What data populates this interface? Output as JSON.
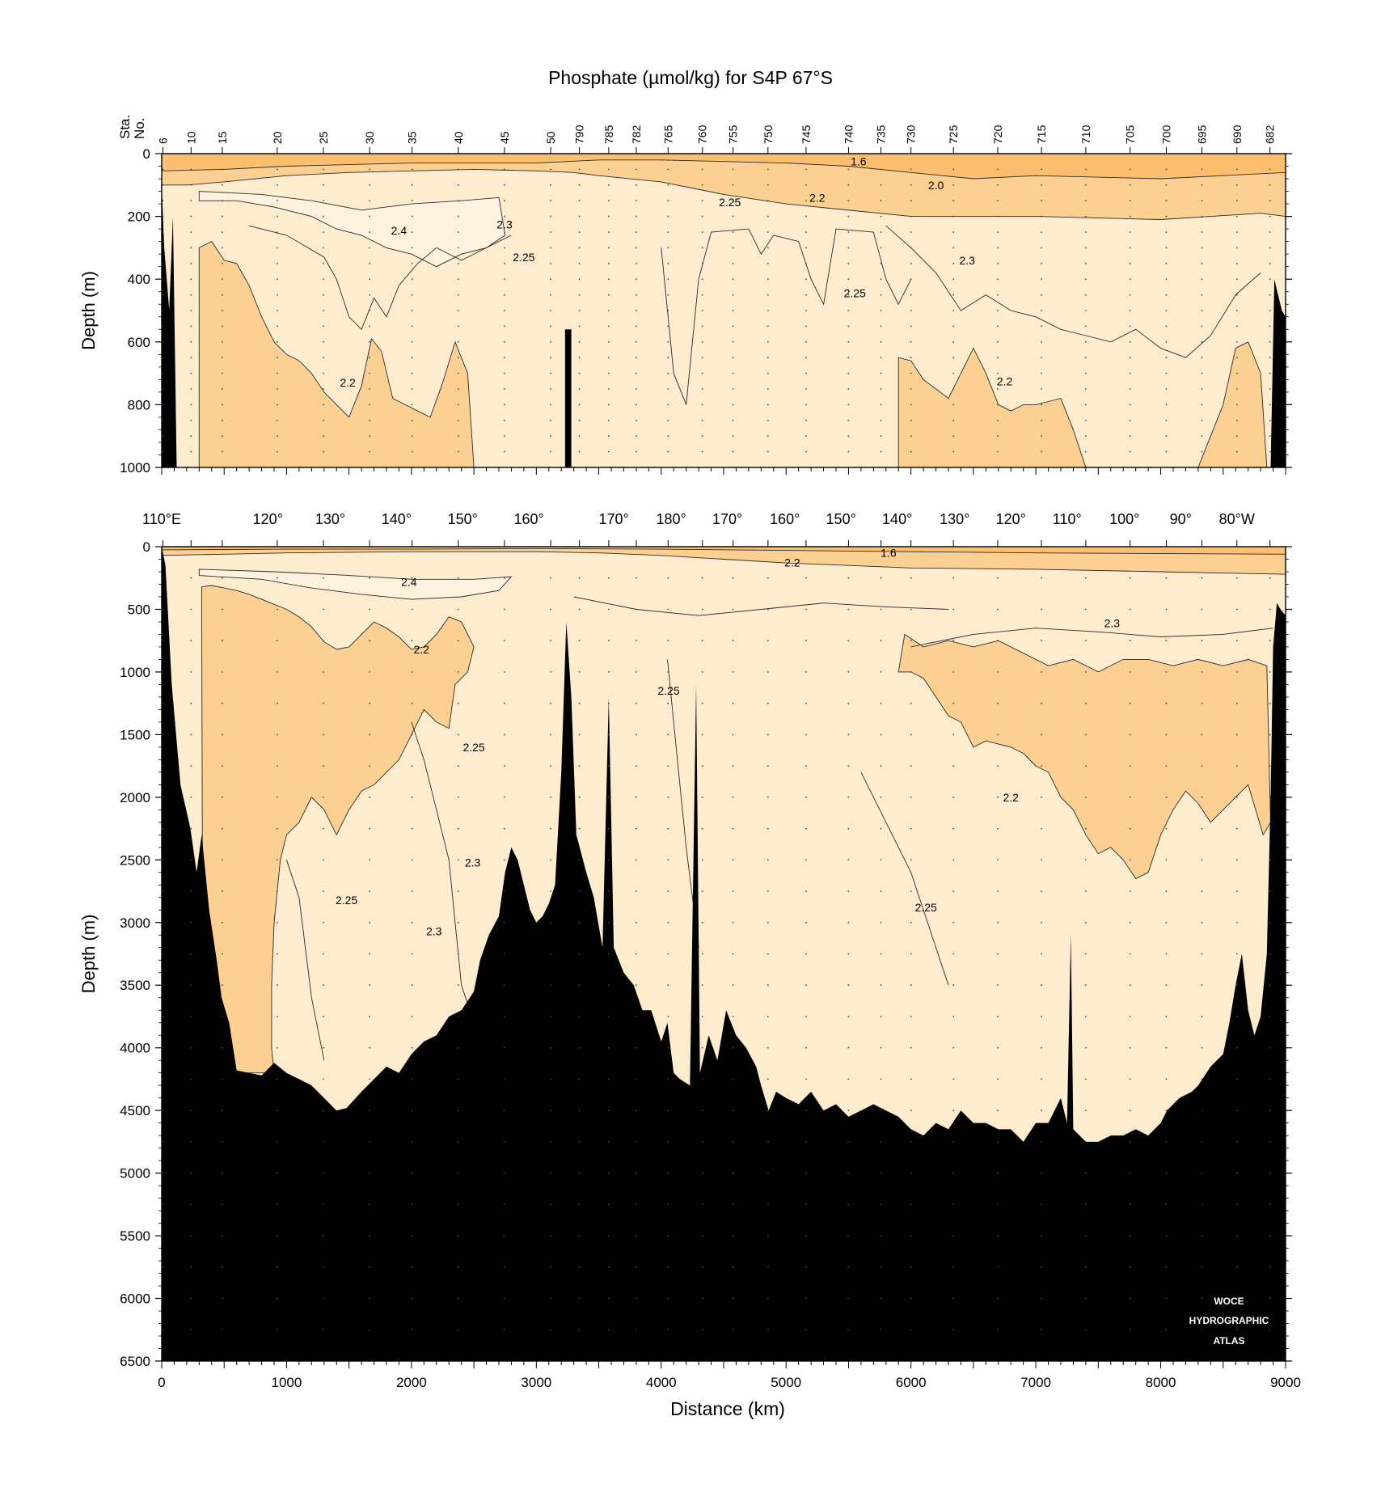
{
  "chart_data": {
    "type": "heatmap",
    "title": "Phosphate (µmol/kg) for S4P 67°S",
    "xlabel": "Distance (km)",
    "ylabel": "Depth (m)",
    "xlim": [
      0,
      9000
    ],
    "x_ticks": [
      0,
      1000,
      2000,
      3000,
      4000,
      5000,
      6000,
      7000,
      8000,
      9000
    ],
    "station_axis_label": [
      "Sta.",
      "No."
    ],
    "stations": [
      {
        "label": "6",
        "km": 10
      },
      {
        "label": "10",
        "km": 235
      },
      {
        "label": "15",
        "km": 485
      },
      {
        "label": "20",
        "km": 925
      },
      {
        "label": "25",
        "km": 1295
      },
      {
        "label": "30",
        "km": 1665
      },
      {
        "label": "35",
        "km": 2005
      },
      {
        "label": "40",
        "km": 2375
      },
      {
        "label": "45",
        "km": 2745
      },
      {
        "label": "50",
        "km": 3115
      },
      {
        "label": "790",
        "km": 3345
      },
      {
        "label": "785",
        "km": 3580
      },
      {
        "label": "782",
        "km": 3800
      },
      {
        "label": "765",
        "km": 4055
      },
      {
        "label": "760",
        "km": 4330
      },
      {
        "label": "755",
        "km": 4575
      },
      {
        "label": "750",
        "km": 4855
      },
      {
        "label": "745",
        "km": 5160
      },
      {
        "label": "740",
        "km": 5500
      },
      {
        "label": "735",
        "km": 5760
      },
      {
        "label": "730",
        "km": 6000
      },
      {
        "label": "725",
        "km": 6340
      },
      {
        "label": "720",
        "km": 6695
      },
      {
        "label": "715",
        "km": 7045
      },
      {
        "label": "710",
        "km": 7400
      },
      {
        "label": "705",
        "km": 7755
      },
      {
        "label": "700",
        "km": 8045
      },
      {
        "label": "695",
        "km": 8330
      },
      {
        "label": "690",
        "km": 8610
      },
      {
        "label": "682",
        "km": 8875
      }
    ],
    "longitudes": [
      {
        "label": "110°E",
        "km": 0
      },
      {
        "label": "120°",
        "km": 850
      },
      {
        "label": "130°",
        "km": 1350
      },
      {
        "label": "140°",
        "km": 1880
      },
      {
        "label": "150°",
        "km": 2410
      },
      {
        "label": "160°",
        "km": 2940
      },
      {
        "label": "170°",
        "km": 3620
      },
      {
        "label": "180°",
        "km": 4080
      },
      {
        "label": "170°",
        "km": 4530
      },
      {
        "label": "160°",
        "km": 4990
      },
      {
        "label": "150°",
        "km": 5440
      },
      {
        "label": "140°",
        "km": 5890
      },
      {
        "label": "130°",
        "km": 6350
      },
      {
        "label": "120°",
        "km": 6800
      },
      {
        "label": "110°",
        "km": 7250
      },
      {
        "label": "100°",
        "km": 7710
      },
      {
        "label": "90°",
        "km": 8160
      },
      {
        "label": "80°W",
        "km": 8610
      }
    ],
    "panels": [
      {
        "name": "upper",
        "ylim": [
          0,
          1000
        ],
        "y_ticks": [
          0,
          200,
          400,
          600,
          800,
          1000
        ],
        "contour_labels": [
          {
            "text": "1.6",
            "km": 5580,
            "depth": 25
          },
          {
            "text": "2.0",
            "km": 6200,
            "depth": 100
          },
          {
            "text": "2.2",
            "km": 5250,
            "depth": 140
          },
          {
            "text": "2.25",
            "km": 4550,
            "depth": 155
          },
          {
            "text": "2.3",
            "km": 2745,
            "depth": 225
          },
          {
            "text": "2.4",
            "km": 1900,
            "depth": 245
          },
          {
            "text": "2.25",
            "km": 2900,
            "depth": 330
          },
          {
            "text": "2.3",
            "km": 6450,
            "depth": 340
          },
          {
            "text": "2.25",
            "km": 5550,
            "depth": 445
          },
          {
            "text": "2.2",
            "km": 1490,
            "depth": 730
          },
          {
            "text": "2.2",
            "km": 6750,
            "depth": 725
          }
        ]
      },
      {
        "name": "lower",
        "ylim": [
          0,
          6500
        ],
        "y_ticks": [
          0,
          500,
          1000,
          1500,
          2000,
          2500,
          3000,
          3500,
          4000,
          4500,
          5000,
          5500,
          6000,
          6500
        ],
        "contour_labels": [
          {
            "text": "1.6",
            "km": 5820,
            "depth": 50
          },
          {
            "text": "2.2",
            "km": 5050,
            "depth": 125
          },
          {
            "text": "2.4",
            "km": 1980,
            "depth": 280
          },
          {
            "text": "2.3",
            "km": 7610,
            "depth": 610
          },
          {
            "text": "2.2",
            "km": 2080,
            "depth": 820
          },
          {
            "text": "2.25",
            "km": 4060,
            "depth": 1150
          },
          {
            "text": "2.25",
            "km": 2500,
            "depth": 1600
          },
          {
            "text": "2.2",
            "km": 6800,
            "depth": 2000
          },
          {
            "text": "2.3",
            "km": 2490,
            "depth": 2520
          },
          {
            "text": "2.25",
            "km": 1480,
            "depth": 2820
          },
          {
            "text": "2.3",
            "km": 2180,
            "depth": 3070
          },
          {
            "text": "2.25",
            "km": 6120,
            "depth": 2880
          }
        ]
      }
    ],
    "color_scale": [
      {
        "class": "< 2.0",
        "color": "#fbbf6f"
      },
      {
        "class": "2.0 - 2.2",
        "color": "#fcd093"
      },
      {
        "class": "2.2 - 2.25",
        "color": "#fde2b8"
      },
      {
        "class": "2.25 - 2.4",
        "color": "#feeccf"
      },
      {
        "class": "> 2.4",
        "color": "#fff3e0"
      },
      {
        "class": "bottom",
        "color": "#000000"
      },
      {
        "class": "contour line",
        "color": "#2a2a2a"
      }
    ],
    "grid": false
  },
  "watermark": [
    "WOCE",
    "HYDROGRAPHIC",
    "ATLAS"
  ]
}
